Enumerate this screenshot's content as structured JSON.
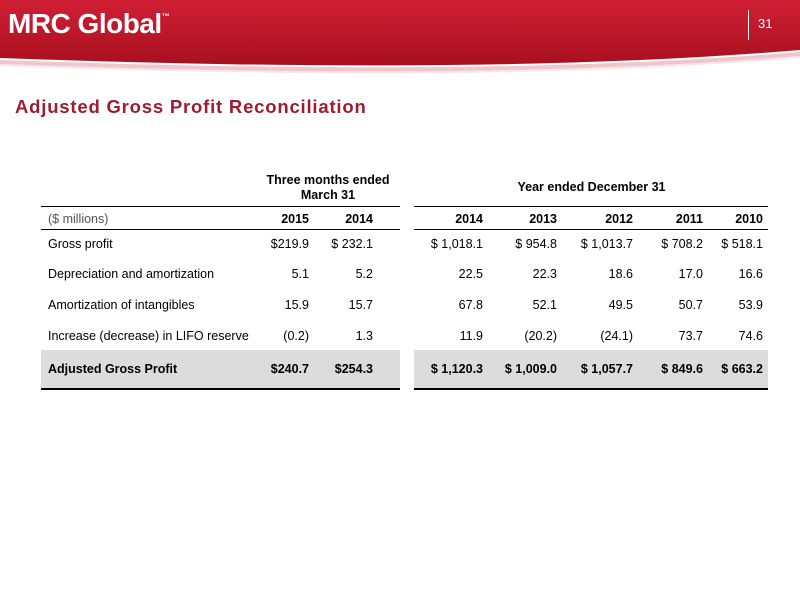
{
  "header": {
    "logo_text": "MRC Global",
    "logo_tm": "™",
    "page_number": "31",
    "bar_color": "#c8102e"
  },
  "title": "Adjusted Gross Profit Reconciliation",
  "table": {
    "group_quarter": "Three months ended March 31",
    "group_year": "Year ended December 31",
    "units_label": "($ millions)",
    "columns": [
      "2015",
      "2014",
      "2014",
      "2013",
      "2012",
      "2011",
      "2010"
    ],
    "rows": [
      {
        "label": "Gross profit",
        "values": [
          "$219.9",
          "$ 232.1",
          "$ 1,018.1",
          "$ 954.8",
          "$ 1,013.7",
          "$ 708.2",
          "$ 518.1"
        ]
      },
      {
        "label": "Depreciation and amortization",
        "values": [
          "5.1",
          "5.2",
          "22.5",
          "22.3",
          "18.6",
          "17.0",
          "16.6"
        ]
      },
      {
        "label": "Amortization of intangibles",
        "values": [
          "15.9",
          "15.7",
          "67.8",
          "52.1",
          "49.5",
          "50.7",
          "53.9"
        ]
      },
      {
        "label": "Increase (decrease) in LIFO reserve",
        "values": [
          "(0.2)",
          "1.3",
          "11.9",
          "(20.2)",
          "(24.1)",
          "73.7",
          "74.6"
        ]
      }
    ],
    "total_row": {
      "label": "Adjusted Gross Profit",
      "values": [
        "$240.7",
        "$254.3",
        "$ 1,120.3",
        "$ 1,009.0",
        "$ 1,057.7",
        "$ 849.6",
        "$ 663.2"
      ]
    }
  }
}
